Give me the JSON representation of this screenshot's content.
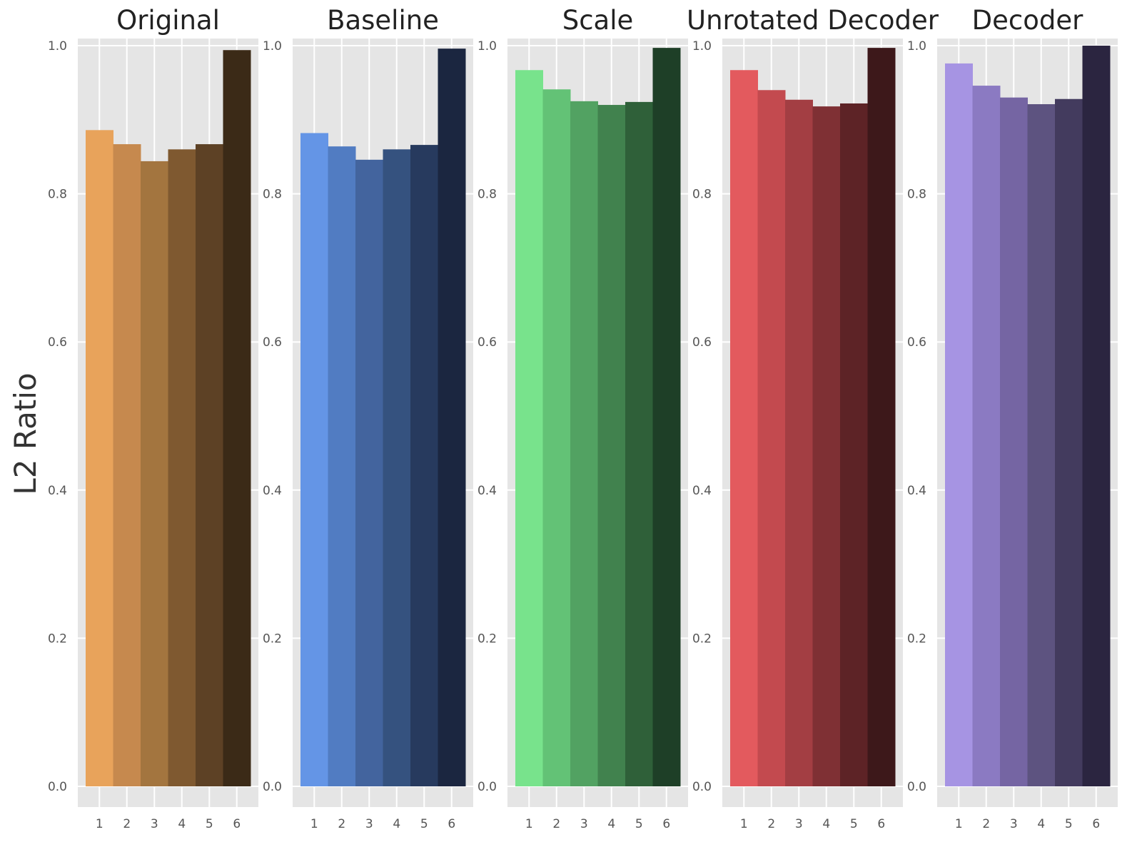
{
  "ylabel": "L2 Ratio",
  "chart_data": [
    {
      "type": "bar",
      "title": "Original",
      "categories": [
        "1",
        "2",
        "3",
        "4",
        "5",
        "6"
      ],
      "values": [
        0.886,
        0.867,
        0.844,
        0.86,
        0.867,
        0.994
      ],
      "colors": [
        "#e8a35b",
        "#c6894e",
        "#a3753f",
        "#7f5930",
        "#5d4125",
        "#3b2a17"
      ],
      "ylim": [
        0,
        1.0
      ],
      "yticks": [
        "0.0",
        "0.2",
        "0.4",
        "0.6",
        "0.8",
        "1.0"
      ],
      "ylabel": "L2 Ratio",
      "grid": true
    },
    {
      "type": "bar",
      "title": "Baseline",
      "categories": [
        "1",
        "2",
        "3",
        "4",
        "5",
        "6"
      ],
      "values": [
        0.882,
        0.864,
        0.846,
        0.86,
        0.866,
        0.996
      ],
      "colors": [
        "#6495e6",
        "#517cc2",
        "#43649e",
        "#35527f",
        "#273a5e",
        "#1b2640"
      ],
      "ylim": [
        0,
        1.0
      ],
      "yticks": [
        "0.0",
        "0.2",
        "0.4",
        "0.6",
        "0.8",
        "1.0"
      ],
      "grid": true
    },
    {
      "type": "bar",
      "title": "Scale",
      "categories": [
        "1",
        "2",
        "3",
        "4",
        "5",
        "6"
      ],
      "values": [
        0.967,
        0.941,
        0.925,
        0.92,
        0.924,
        0.997
      ],
      "colors": [
        "#78e38c",
        "#63c276",
        "#52a262",
        "#41824e",
        "#2f6039",
        "#1e3f27"
      ],
      "ylim": [
        0,
        1.0
      ],
      "yticks": [
        "0.0",
        "0.2",
        "0.4",
        "0.6",
        "0.8",
        "1.0"
      ],
      "grid": true
    },
    {
      "type": "bar",
      "title": "Unrotated Decoder",
      "categories": [
        "1",
        "2",
        "3",
        "4",
        "5",
        "6"
      ],
      "values": [
        0.967,
        0.94,
        0.927,
        0.918,
        0.922,
        0.997
      ],
      "colors": [
        "#e35a5e",
        "#c34a4f",
        "#a33e43",
        "#7f3034",
        "#5d2326",
        "#3d181a"
      ],
      "ylim": [
        0,
        1.0
      ],
      "yticks": [
        "0.0",
        "0.2",
        "0.4",
        "0.6",
        "0.8",
        "1.0"
      ],
      "grid": true
    },
    {
      "type": "bar",
      "title": "Decoder",
      "categories": [
        "1",
        "2",
        "3",
        "4",
        "5",
        "6"
      ],
      "values": [
        0.976,
        0.946,
        0.93,
        0.921,
        0.928,
        1.0
      ],
      "colors": [
        "#a694e3",
        "#8b7ac2",
        "#7565a3",
        "#5d5380",
        "#433b5e",
        "#2b2540"
      ],
      "ylim": [
        0,
        1.0
      ],
      "yticks": [
        "0.0",
        "0.2",
        "0.4",
        "0.6",
        "0.8",
        "1.0"
      ],
      "grid": true
    }
  ]
}
